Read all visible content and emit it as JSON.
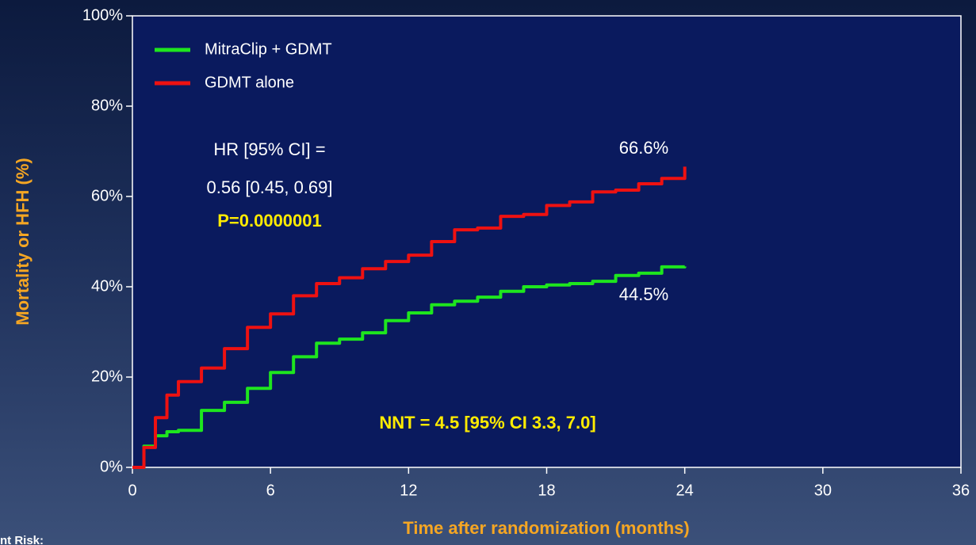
{
  "chart_data": {
    "type": "line",
    "x_label": "Time after randomization (months)",
    "y_label": "Mortality or HFH (%)",
    "x": [
      0,
      0.5,
      1,
      1.5,
      2,
      3,
      4,
      5,
      6,
      7,
      8,
      9,
      10,
      11,
      12,
      13,
      14,
      15,
      16,
      17,
      18,
      19,
      20,
      21,
      22,
      23,
      24
    ],
    "series": [
      {
        "name": "MitraClip + GDMT",
        "color": "#1ee61e",
        "values": [
          0,
          4.7,
          7,
          7.9,
          8.2,
          12.6,
          14.4,
          17.5,
          21,
          24.5,
          27.5,
          28.4,
          29.8,
          32.5,
          34.2,
          36,
          36.8,
          37.7,
          39,
          40,
          40.4,
          40.7,
          41.2,
          42.5,
          43,
          44.4,
          44.5
        ]
      },
      {
        "name": "GDMT alone",
        "color": "#ee1111",
        "values": [
          0,
          4.4,
          11,
          16,
          19,
          22,
          26.3,
          31,
          34,
          38,
          40.7,
          42,
          44,
          45.6,
          47,
          50,
          52.6,
          53,
          55.6,
          56,
          58,
          58.8,
          61,
          61.4,
          62.8,
          64,
          66.6
        ]
      }
    ],
    "xlim": [
      0,
      36
    ],
    "xticks": [
      0,
      6,
      12,
      18,
      24,
      30,
      36
    ],
    "ylim": [
      0,
      100
    ],
    "yticks": [
      {
        "value": 0,
        "label": "0%"
      },
      {
        "value": 20,
        "label": "20%"
      },
      {
        "value": 40,
        "label": "40%"
      },
      {
        "value": 60,
        "label": "60%"
      },
      {
        "value": 80,
        "label": "80%"
      },
      {
        "value": 100,
        "label": "100%"
      }
    ],
    "annotations": [
      "66.6%",
      "44.5%",
      "HR [95% CI] =",
      "0.56 [0.45, 0.69]",
      "P=0.0000001",
      "NNT = 4.5 [95% CI 3.3, 7.0]"
    ],
    "footnote": "nt Risk:"
  }
}
